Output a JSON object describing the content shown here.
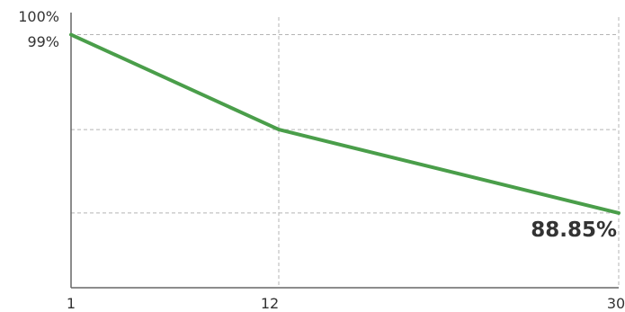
{
  "chart_data": {
    "type": "line",
    "x": [
      1,
      12,
      30
    ],
    "series": [
      {
        "values": [
          99,
          93.6,
          88.85
        ]
      }
    ],
    "x_ticks": [
      "1",
      "12",
      "30"
    ],
    "y_ticks": [
      "100%",
      "99%"
    ],
    "ylim": [
      84.6,
      100
    ],
    "xlim": [
      1,
      30
    ],
    "annotations": [
      {
        "label": "88.85%",
        "x": 30,
        "y": 88.85
      }
    ],
    "reference_lines": [
      {
        "axis": "y",
        "value": 99
      },
      {
        "axis": "y",
        "value": 93.6
      },
      {
        "axis": "y",
        "value": 88.85
      },
      {
        "axis": "x",
        "value": 12
      },
      {
        "axis": "x",
        "value": 30
      }
    ],
    "line_color": "#4a9e4a",
    "grid": false,
    "legend": "none",
    "title": "",
    "xlabel": "",
    "ylabel": ""
  }
}
